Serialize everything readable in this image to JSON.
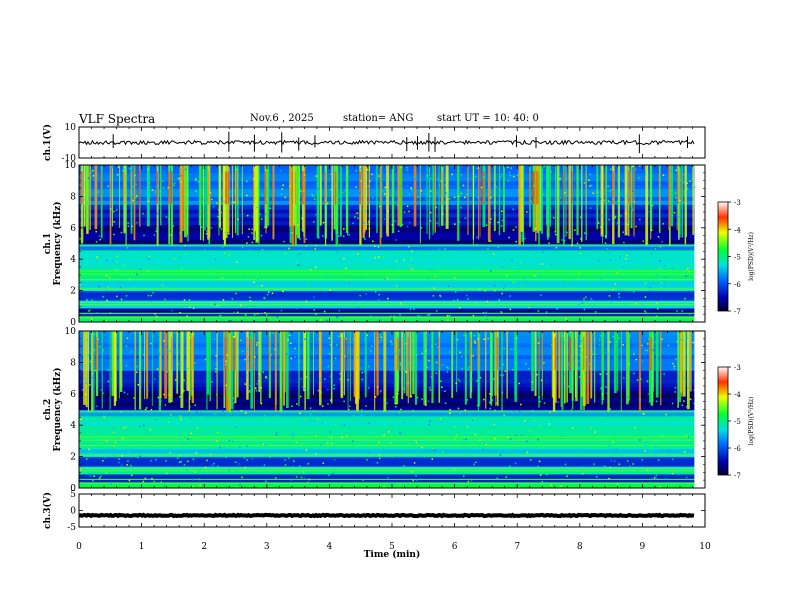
{
  "header": {
    "title": "VLF Spectra",
    "date": "Nov.6 , 2025",
    "station": "station= ANG",
    "start": "start UT = 10: 40: 0"
  },
  "chart_data": [
    {
      "type": "line",
      "title": "ch.1 waveform",
      "ylabel": "ch.1(V)",
      "ylim": [
        -10,
        10
      ],
      "yticks": [
        "10",
        "-10"
      ],
      "xlim": [
        0,
        10
      ],
      "trace_level": 0
    },
    {
      "type": "heatmap",
      "title": "ch.1 spectrogram",
      "ylabel_line1": "ch.1",
      "ylabel_line2": "Frequency (kHz)",
      "ylim": [
        0,
        10
      ],
      "yticks": [
        "0",
        "2",
        "4",
        "6",
        "8",
        "10"
      ],
      "xlim": [
        0,
        10
      ],
      "data_end_min": 9.83,
      "colorbar": {
        "label": "log(PSD)(V²/Hz)",
        "range": [
          -7,
          -3
        ],
        "ticks": [
          "-3",
          "-4",
          "-5",
          "-6",
          "-7"
        ]
      }
    },
    {
      "type": "heatmap",
      "title": "ch.2 spectrogram",
      "ylabel_line1": "ch.2",
      "ylabel_line2": "Frequency (kHz)",
      "ylim": [
        0,
        10
      ],
      "yticks": [
        "0",
        "2",
        "4",
        "6",
        "8",
        "10"
      ],
      "xlim": [
        0,
        10
      ],
      "data_end_min": 9.83,
      "colorbar": {
        "label": "log(PSD)(V²/Hz)",
        "range": [
          -7,
          -3
        ],
        "ticks": [
          "-3",
          "-4",
          "-5",
          "-6",
          "-7"
        ]
      }
    },
    {
      "type": "line",
      "title": "ch.3 waveform",
      "ylabel": "ch.3(V)",
      "ylim": [
        -5,
        5
      ],
      "yticks": [
        "5",
        "0",
        "-5"
      ],
      "xlim": [
        0,
        10
      ],
      "trace_level": -1.5
    }
  ],
  "xaxis": {
    "label": "Time (min)",
    "ticks": [
      "0",
      "1",
      "2",
      "3",
      "4",
      "5",
      "6",
      "7",
      "8",
      "9",
      "10"
    ]
  }
}
